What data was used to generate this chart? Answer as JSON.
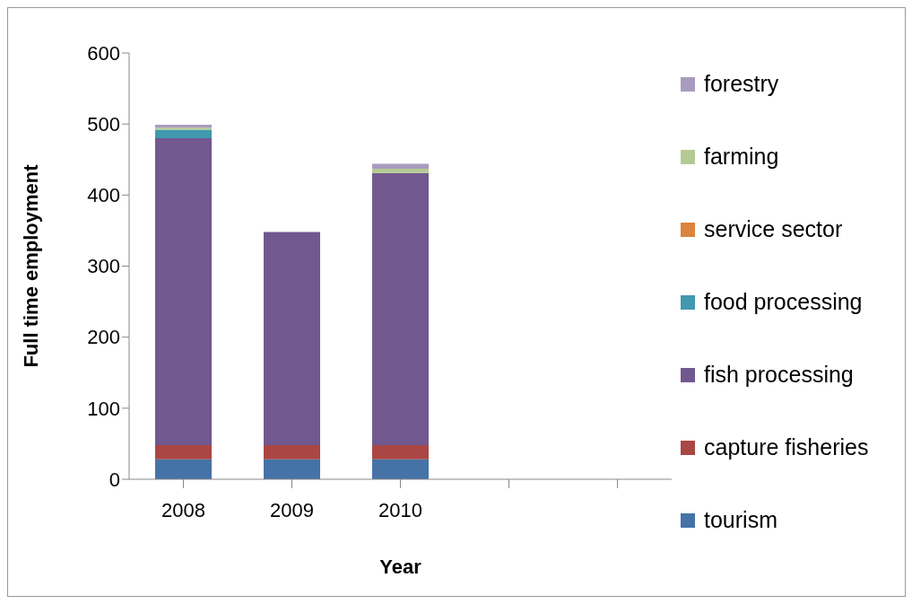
{
  "chart_data": {
    "type": "bar",
    "stacked": true,
    "xlabel": "Year",
    "ylabel": "Full time employment",
    "categories": [
      "2008",
      "2009",
      "2010",
      null,
      null
    ],
    "series": [
      {
        "name": "tourism",
        "color": "#4572a7",
        "values": [
          28,
          28,
          28,
          null,
          null
        ]
      },
      {
        "name": "capture fisheries",
        "color": "#aa4643",
        "values": [
          20,
          20,
          20,
          null,
          null
        ]
      },
      {
        "name": "fish processing",
        "color": "#71588f",
        "values": [
          432,
          300,
          383,
          null,
          null
        ]
      },
      {
        "name": "food processing",
        "color": "#4198af",
        "values": [
          12,
          0,
          0,
          null,
          null
        ]
      },
      {
        "name": "service sector",
        "color": "#db843d",
        "values": [
          0,
          0,
          0,
          null,
          null
        ]
      },
      {
        "name": "farming",
        "color": "#b5ca92",
        "values": [
          3,
          0,
          6,
          null,
          null
        ]
      },
      {
        "name": "forestry",
        "color": "#a99bbd",
        "values": [
          4,
          0,
          7,
          null,
          null
        ]
      }
    ],
    "ylim": [
      0,
      600
    ],
    "yticks": [
      0,
      100,
      200,
      300,
      400,
      500,
      600
    ],
    "grid": false,
    "legend": "right"
  }
}
